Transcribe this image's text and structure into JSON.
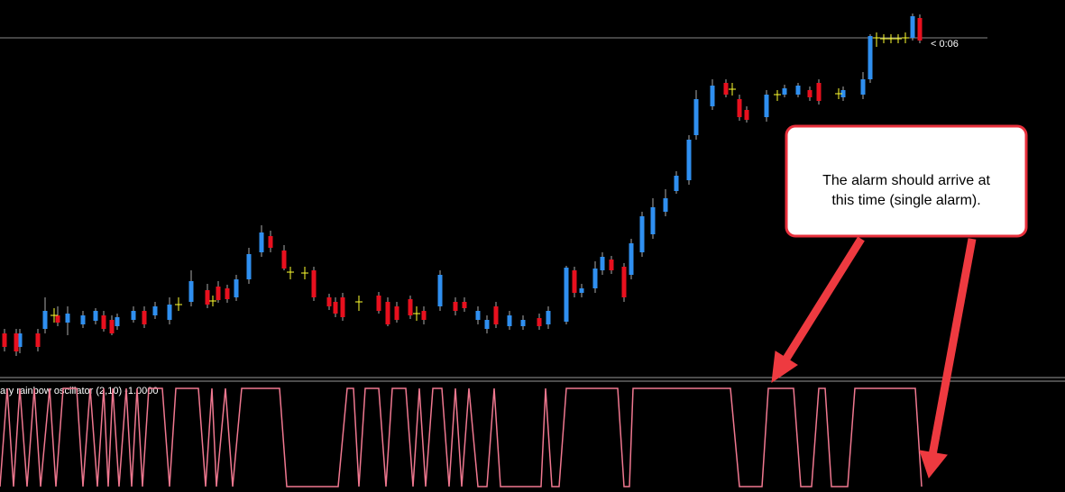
{
  "price_timer": "< 0:06",
  "indicator_label": "ary rainbow oscillator (2,10) -1.0000",
  "callout": {
    "line1": "The alarm should arrive at",
    "line2": "this time (single alarm)."
  }
}
